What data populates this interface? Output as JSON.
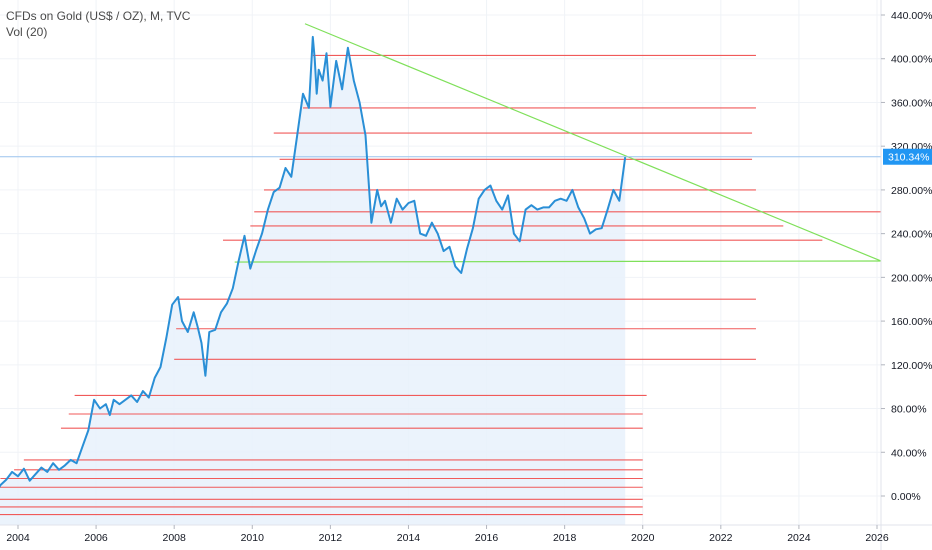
{
  "legend": {
    "title": "CFDs on Gold (US$ / OZ), M, TVC",
    "volume": "Vol (20)"
  },
  "colors": {
    "price_line": "#2a8fd6",
    "area_fill": "#e8f1fb",
    "support_lines": "#f05a5a",
    "trend_lines": "#7fe05a",
    "last_price_line": "#9cc4ee",
    "last_price_badge": "#2196f3",
    "grid": "#f0f3f7"
  },
  "chart_data": {
    "type": "line",
    "title": "CFDs on Gold (US$ / OZ), M, TVC",
    "xlabel": "",
    "ylabel": "",
    "y_unit": "%",
    "xlim": [
      2003.35,
      2026.2
    ],
    "ylim": [
      -25,
      450
    ],
    "x_ticks": [
      2004,
      2006,
      2008,
      2010,
      2012,
      2014,
      2016,
      2018,
      2020,
      2022,
      2024,
      2026
    ],
    "y_ticks": [
      0,
      40,
      80,
      120,
      160,
      200,
      240,
      280,
      320,
      360,
      400,
      440
    ],
    "y_tick_labels": [
      "0.00%",
      "40.00%",
      "80.00%",
      "120.00%",
      "160.00%",
      "200.00%",
      "240.00%",
      "280.00%",
      "320.00%",
      "360.00%",
      "400.00%",
      "440.00%"
    ],
    "last_value": 310.34,
    "last_value_label": "310.34%",
    "series": [
      {
        "x": [
          2003.4,
          2003.55,
          2003.7,
          2003.85,
          2004.0,
          2004.15,
          2004.3,
          2004.45,
          2004.6,
          2004.75,
          2004.9,
          2005.05,
          2005.2,
          2005.35,
          2005.5,
          2005.65,
          2005.8,
          2005.95,
          2006.1,
          2006.25,
          2006.35,
          2006.45,
          2006.6,
          2006.75,
          2006.9,
          2007.05,
          2007.2,
          2007.35,
          2007.5,
          2007.65,
          2007.8,
          2007.95,
          2008.1,
          2008.2,
          2008.35,
          2008.5,
          2008.6,
          2008.7,
          2008.8,
          2008.9,
          2009.05,
          2009.2,
          2009.35,
          2009.5,
          2009.65,
          2009.8,
          2009.95,
          2010.1,
          2010.25,
          2010.4,
          2010.55,
          2010.7,
          2010.85,
          2011.0,
          2011.15,
          2011.3,
          2011.45,
          2011.55,
          2011.6,
          2011.65,
          2011.7,
          2011.8,
          2011.9,
          2012.0,
          2012.15,
          2012.3,
          2012.45,
          2012.6,
          2012.75,
          2012.9,
          2013.05,
          2013.2,
          2013.3,
          2013.4,
          2013.55,
          2013.7,
          2013.85,
          2014.0,
          2014.15,
          2014.3,
          2014.45,
          2014.6,
          2014.75,
          2014.9,
          2015.05,
          2015.2,
          2015.35,
          2015.5,
          2015.65,
          2015.8,
          2015.95,
          2016.1,
          2016.25,
          2016.4,
          2016.55,
          2016.7,
          2016.85,
          2017.0,
          2017.15,
          2017.3,
          2017.45,
          2017.6,
          2017.75,
          2017.9,
          2018.05,
          2018.2,
          2018.35,
          2018.5,
          2018.65,
          2018.8,
          2018.95,
          2019.1,
          2019.25,
          2019.4,
          2019.55
        ],
        "values": [
          0,
          10,
          15,
          22,
          18,
          25,
          14,
          20,
          26,
          22,
          30,
          24,
          28,
          33,
          30,
          45,
          60,
          88,
          80,
          84,
          74,
          88,
          84,
          88,
          92,
          86,
          96,
          90,
          108,
          118,
          145,
          175,
          182,
          160,
          150,
          168,
          155,
          140,
          110,
          150,
          152,
          168,
          176,
          190,
          215,
          238,
          208,
          225,
          240,
          262,
          278,
          282,
          300,
          292,
          330,
          368,
          355,
          420,
          400,
          368,
          390,
          380,
          405,
          356,
          398,
          372,
          410,
          380,
          360,
          330,
          250,
          280,
          265,
          270,
          250,
          272,
          262,
          268,
          270,
          240,
          238,
          250,
          240,
          224,
          228,
          210,
          204,
          226,
          245,
          272,
          280,
          284,
          270,
          262,
          275,
          240,
          233,
          262,
          266,
          262,
          264,
          264,
          270,
          272,
          270,
          280,
          264,
          254,
          240,
          244,
          245,
          262,
          280,
          270,
          310
        ]
      }
    ],
    "annotations": {
      "horizontal_levels": [
        {
          "value": 403,
          "x_start": 2011.55,
          "x_end": 2022.9
        },
        {
          "value": 355,
          "x_start": 2011.3,
          "x_end": 2022.9
        },
        {
          "value": 332,
          "x_start": 2010.55,
          "x_end": 2022.8
        },
        {
          "value": 308,
          "x_start": 2010.7,
          "x_end": 2022.8
        },
        {
          "value": 280,
          "x_start": 2010.3,
          "x_end": 2022.9
        },
        {
          "value": 260,
          "x_start": 2010.05,
          "x_end": 2026.2
        },
        {
          "value": 247,
          "x_start": 2009.95,
          "x_end": 2023.6
        },
        {
          "value": 234,
          "x_start": 2009.25,
          "x_end": 2024.6
        },
        {
          "value": 180,
          "x_start": 2008.05,
          "x_end": 2022.9
        },
        {
          "value": 153,
          "x_start": 2008.05,
          "x_end": 2022.9
        },
        {
          "value": 125,
          "x_start": 2008.0,
          "x_end": 2022.9
        },
        {
          "value": 92,
          "x_start": 2005.45,
          "x_end": 2020.1
        },
        {
          "value": 75,
          "x_start": 2005.3,
          "x_end": 2020.0
        },
        {
          "value": 62,
          "x_start": 2005.1,
          "x_end": 2020.0
        },
        {
          "value": 33,
          "x_start": 2004.15,
          "x_end": 2020.0
        },
        {
          "value": 24,
          "x_start": 2003.9,
          "x_end": 2020.0
        },
        {
          "value": 16,
          "x_start": 2003.55,
          "x_end": 2020.0
        },
        {
          "value": 8,
          "x_start": 2003.35,
          "x_end": 2020.0
        },
        {
          "value": -3,
          "x_start": 2003.35,
          "x_end": 2020.0
        },
        {
          "value": -10,
          "x_start": 2003.35,
          "x_end": 2020.0
        },
        {
          "value": -17,
          "x_start": 2003.35,
          "x_end": 2020.0
        }
      ],
      "trend_lines": [
        {
          "x1": 2011.35,
          "y1": 432,
          "x2": 2026.1,
          "y2": 215
        },
        {
          "x1": 2009.55,
          "y1": 214,
          "x2": 2026.1,
          "y2": 215
        }
      ]
    }
  }
}
